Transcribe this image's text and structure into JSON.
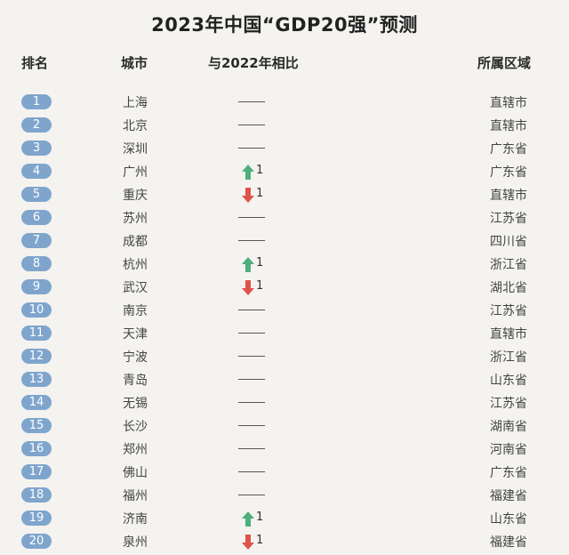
{
  "title": "2023年中国“GDP20强”预测",
  "headers": {
    "rank": "排名",
    "city": "城市",
    "change": "与2022年相比",
    "region": "所属区域"
  },
  "colors": {
    "badge": "#7fa5cd",
    "up": "#4caf7d",
    "down": "#e0534a"
  },
  "rows": [
    {
      "rank": "1",
      "city": "上海",
      "change": "same",
      "delta": "",
      "region": "直辖市"
    },
    {
      "rank": "2",
      "city": "北京",
      "change": "same",
      "delta": "",
      "region": "直辖市"
    },
    {
      "rank": "3",
      "city": "深圳",
      "change": "same",
      "delta": "",
      "region": "广东省"
    },
    {
      "rank": "4",
      "city": "广州",
      "change": "up",
      "delta": "1",
      "region": "广东省"
    },
    {
      "rank": "5",
      "city": "重庆",
      "change": "down",
      "delta": "1",
      "region": "直辖市"
    },
    {
      "rank": "6",
      "city": "苏州",
      "change": "same",
      "delta": "",
      "region": "江苏省"
    },
    {
      "rank": "7",
      "city": "成都",
      "change": "same",
      "delta": "",
      "region": "四川省"
    },
    {
      "rank": "8",
      "city": "杭州",
      "change": "up",
      "delta": "1",
      "region": "浙江省"
    },
    {
      "rank": "9",
      "city": "武汉",
      "change": "down",
      "delta": "1",
      "region": "湖北省"
    },
    {
      "rank": "10",
      "city": "南京",
      "change": "same",
      "delta": "",
      "region": "江苏省"
    },
    {
      "rank": "11",
      "city": "天津",
      "change": "same",
      "delta": "",
      "region": "直辖市"
    },
    {
      "rank": "12",
      "city": "宁波",
      "change": "same",
      "delta": "",
      "region": "浙江省"
    },
    {
      "rank": "13",
      "city": "青岛",
      "change": "same",
      "delta": "",
      "region": "山东省"
    },
    {
      "rank": "14",
      "city": "无锡",
      "change": "same",
      "delta": "",
      "region": "江苏省"
    },
    {
      "rank": "15",
      "city": "长沙",
      "change": "same",
      "delta": "",
      "region": "湖南省"
    },
    {
      "rank": "16",
      "city": "郑州",
      "change": "same",
      "delta": "",
      "region": "河南省"
    },
    {
      "rank": "17",
      "city": "佛山",
      "change": "same",
      "delta": "",
      "region": "广东省"
    },
    {
      "rank": "18",
      "city": "福州",
      "change": "same",
      "delta": "",
      "region": "福建省"
    },
    {
      "rank": "19",
      "city": "济南",
      "change": "up",
      "delta": "1",
      "region": "山东省"
    },
    {
      "rank": "20",
      "city": "泉州",
      "change": "down",
      "delta": "1",
      "region": "福建省"
    }
  ]
}
